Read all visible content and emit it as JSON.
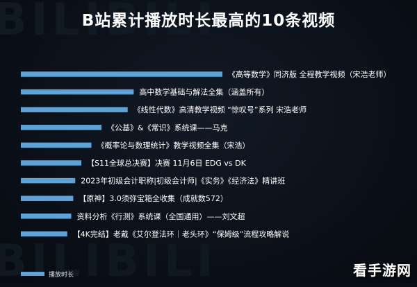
{
  "background_text": "BILIBILI",
  "chart_data": {
    "type": "bar",
    "orientation": "horizontal",
    "title": "B站累计播放时长最高的10条视频",
    "categories": [
      "《高等数学》同济版 全程教学视频（宋浩老师）",
      "高中数学基础与解法全集（涵盖所有）",
      "《线性代数》高清教学视频 “惊叹号”系列 宋浩老师",
      "《公基》&《常识》系统课——马克",
      "《概率论与数理统计》教学视频全集（宋浩）",
      "【S11全球总决赛】决赛 11月6日 EDG vs DK",
      "2023年初级会计职称|初级会计师|《实务》《经济法》精讲班",
      "【原神】3.0须弥宝箱全收集（成就数572）",
      "资料分析《行测》系统课（全国通用）——刘文超",
      "【4K完结】老戴《艾尔登法环｜老头环》“保姆级”流程攻略解说"
    ],
    "series": [
      {
        "name": "播放时长",
        "values": [
          100,
          56,
          53,
          40,
          35,
          30,
          27,
          26,
          25,
          23
        ]
      }
    ],
    "xlim": [
      0,
      100
    ],
    "grid": false,
    "legend": "bottom-left",
    "bar_color": "#5ea3d8",
    "label_color": "#ffffff"
  },
  "legend_label": "播放时长",
  "watermark": "看手游网"
}
